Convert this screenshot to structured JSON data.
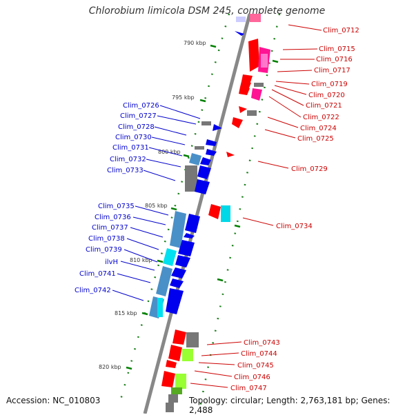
{
  "title": "Chlorobium limicola DSM 245, complete genome",
  "accession": "Accession: NC_010803",
  "topology": "Topology: circular; Length: 2,763,181 bp; Genes: 2,488",
  "ticks": [
    "790 kbp",
    "795 kbp",
    "800 kbp",
    "805 kbp",
    "810 kbp",
    "815 kbp",
    "820 kbp"
  ],
  "right_labels": [
    "Clim_0712",
    "Clim_0715",
    "Clim_0716",
    "Clim_0717",
    "Clim_0719",
    "Clim_0720",
    "Clim_0721",
    "Clim_0722",
    "Clim_0724",
    "Clim_0725",
    "Clim_0729",
    "Clim_0734",
    "Clim_0743",
    "Clim_0744",
    "Clim_0745",
    "Clim_0746",
    "Clim_0747"
  ],
  "left_labels": [
    "Clim_0726",
    "Clim_0727",
    "Clim_0728",
    "Clim_0730",
    "Clim_0731",
    "Clim_0732",
    "Clim_0733",
    "Clim_0735",
    "Clim_0736",
    "Clim_0737",
    "Clim_0738",
    "Clim_0739",
    "ilvH",
    "Clim_0741",
    "Clim_0742"
  ],
  "colors": {
    "forward_label": "#0000cc",
    "reverse_label": "#cc0000",
    "forward_gene": "#0000ee",
    "reverse_gene": "#ff0000",
    "backbone": "#888888",
    "tick": "#008000"
  }
}
